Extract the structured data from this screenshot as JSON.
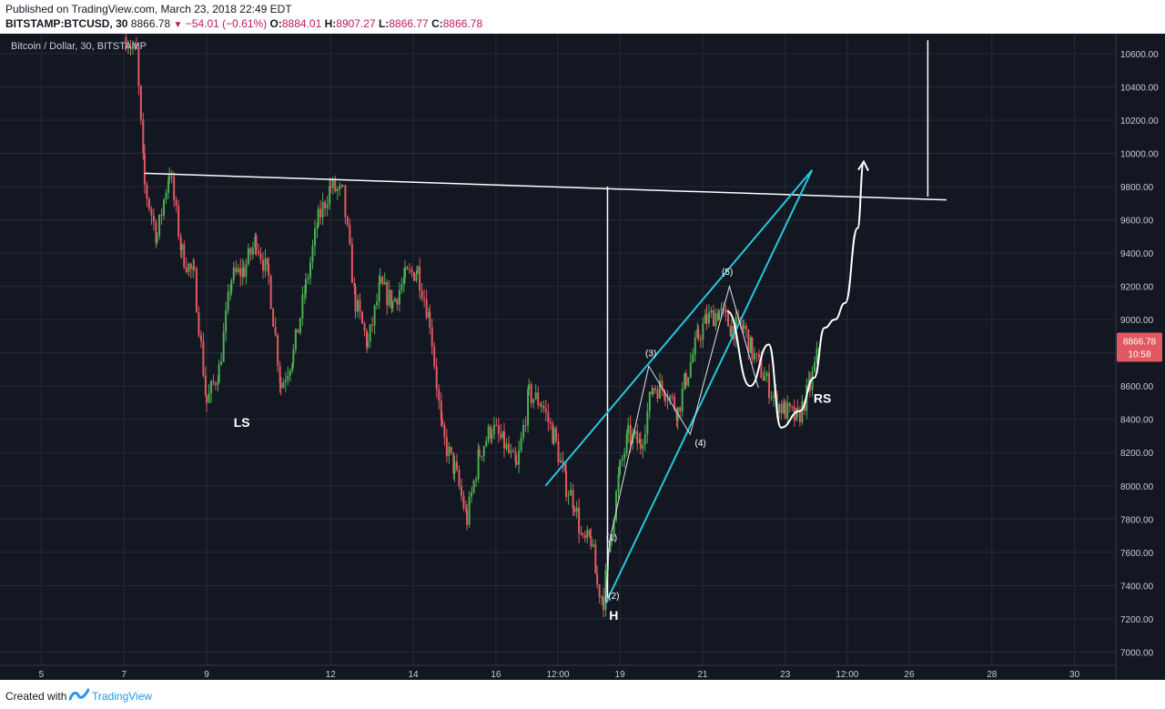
{
  "header": {
    "published": "Published on TradingView.com, March 23, 2018 22:49 EDT",
    "symbol": "BITSTAMP:BTCUSD, 30",
    "last": "8866.78",
    "change": "−54.01 (−0.61%)",
    "open_label": "O:",
    "open": "8884.01",
    "high_label": "H:",
    "high": "8907.27",
    "low_label": "L:",
    "low": "8866.77",
    "close_label": "C:",
    "close": "8866.78"
  },
  "footer": {
    "created_label": "Created with",
    "brand": "TradingView"
  },
  "colors": {
    "background": "#131722",
    "grid": "#272b36",
    "up": "#4caf50",
    "down": "#e05a62",
    "annotation_white": "#ffffff",
    "annotation_cyan": "#26c6da",
    "price_badge": "#e05a62"
  },
  "chart_data": {
    "type": "candlestick",
    "title": "Bitcoin / Dollar, 30, BITSTAMP",
    "ylim": [
      6920,
      10720
    ],
    "xlim": [
      4.0,
      31.0
    ],
    "y_ticks": [
      "10600.00",
      "10400.00",
      "10200.00",
      "10000.00",
      "9800.00",
      "9600.00",
      "9400.00",
      "9200.00",
      "9000.00",
      "8800.00",
      "8600.00",
      "8400.00",
      "8200.00",
      "8000.00",
      "7800.00",
      "7600.00",
      "7400.00",
      "7200.00",
      "7000.00"
    ],
    "x_ticks": [
      {
        "label": "5",
        "x": 5.0
      },
      {
        "label": "7",
        "x": 7.0
      },
      {
        "label": "9",
        "x": 9.0
      },
      {
        "label": "12",
        "x": 12.0
      },
      {
        "label": "14",
        "x": 14.0
      },
      {
        "label": "16",
        "x": 16.0
      },
      {
        "label": "12:00",
        "x": 17.5
      },
      {
        "label": "19",
        "x": 19.0
      },
      {
        "label": "21",
        "x": 21.0
      },
      {
        "label": "23",
        "x": 23.0
      },
      {
        "label": "12:00",
        "x": 24.5
      },
      {
        "label": "26",
        "x": 26.0
      },
      {
        "label": "28",
        "x": 28.0
      },
      {
        "label": "30",
        "x": 30.0
      }
    ],
    "price_path": [
      [
        7.05,
        10700
      ],
      [
        7.3,
        10600
      ],
      [
        7.5,
        9800
      ],
      [
        7.8,
        9500
      ],
      [
        8.1,
        9900
      ],
      [
        8.4,
        9400
      ],
      [
        8.7,
        9250
      ],
      [
        9.0,
        8500
      ],
      [
        9.3,
        8700
      ],
      [
        9.6,
        9250
      ],
      [
        9.9,
        9300
      ],
      [
        10.2,
        9480
      ],
      [
        10.5,
        9250
      ],
      [
        10.8,
        8600
      ],
      [
        11.1,
        8800
      ],
      [
        11.4,
        9200
      ],
      [
        11.7,
        9600
      ],
      [
        12.0,
        9800
      ],
      [
        12.3,
        9750
      ],
      [
        12.6,
        9100
      ],
      [
        12.9,
        8850
      ],
      [
        13.2,
        9200
      ],
      [
        13.5,
        9100
      ],
      [
        13.8,
        9250
      ],
      [
        14.1,
        9300
      ],
      [
        14.4,
        9000
      ],
      [
        14.7,
        8300
      ],
      [
        15.0,
        8100
      ],
      [
        15.3,
        7800
      ],
      [
        15.6,
        8200
      ],
      [
        15.9,
        8350
      ],
      [
        16.2,
        8250
      ],
      [
        16.5,
        8100
      ],
      [
        16.8,
        8550
      ],
      [
        17.1,
        8500
      ],
      [
        17.4,
        8300
      ],
      [
        17.7,
        8000
      ],
      [
        17.9,
        7900
      ],
      [
        18.1,
        7650
      ],
      [
        18.3,
        7680
      ],
      [
        18.45,
        7400
      ],
      [
        18.6,
        7320
      ],
      [
        18.8,
        7750
      ],
      [
        19.0,
        8100
      ],
      [
        19.2,
        8300
      ],
      [
        19.5,
        8250
      ],
      [
        19.8,
        8600
      ],
      [
        20.1,
        8580
      ],
      [
        20.4,
        8450
      ],
      [
        20.6,
        8650
      ],
      [
        20.9,
        8900
      ],
      [
        21.1,
        9000
      ],
      [
        21.4,
        9050
      ],
      [
        21.7,
        8950
      ],
      [
        22.0,
        8950
      ],
      [
        22.2,
        8800
      ],
      [
        22.5,
        8650
      ],
      [
        22.8,
        8500
      ],
      [
        23.0,
        8450
      ],
      [
        23.3,
        8400
      ],
      [
        23.6,
        8600
      ],
      [
        23.85,
        8860
      ]
    ],
    "last_price": "8866.78",
    "badge_time": "10:58",
    "annotations": {
      "labels": [
        {
          "text": "LS",
          "x": 9.85,
          "y": 8355
        },
        {
          "text": "H",
          "x": 18.85,
          "y": 7195
        },
        {
          "text": "RS",
          "x": 23.9,
          "y": 8500
        }
      ],
      "waves": [
        {
          "text": "(1)",
          "x": 18.8,
          "y": 7670
        },
        {
          "text": "(2)",
          "x": 18.85,
          "y": 7320
        },
        {
          "text": "(3)",
          "x": 19.75,
          "y": 8780
        },
        {
          "text": "(4)",
          "x": 20.95,
          "y": 8240
        },
        {
          "text": "(5)",
          "x": 21.6,
          "y": 9270
        }
      ],
      "white_lines": [
        [
          [
            7.5,
            9880
          ],
          [
            26.9,
            9720
          ]
        ],
        [
          [
            18.7,
            9800
          ],
          [
            18.7,
            7300
          ]
        ],
        [
          [
            26.45,
            10680
          ],
          [
            26.45,
            9740
          ]
        ]
      ],
      "cyan_lines": [
        [
          [
            17.2,
            8000
          ],
          [
            23.65,
            9900
          ]
        ],
        [
          [
            18.65,
            7290
          ],
          [
            23.65,
            9900
          ]
        ]
      ],
      "wave_path": [
        [
          18.65,
          7300
        ],
        [
          18.75,
          7670
        ],
        [
          19.7,
          8720
        ],
        [
          20.7,
          8310
        ],
        [
          21.65,
          9200
        ],
        [
          22.35,
          8590
        ]
      ],
      "projection_path": [
        [
          21.6,
          9050
        ],
        [
          22.15,
          8600
        ],
        [
          22.6,
          8850
        ],
        [
          22.9,
          8350
        ],
        [
          23.35,
          8450
        ],
        [
          23.7,
          8650
        ],
        [
          23.95,
          8950
        ],
        [
          24.2,
          9000
        ],
        [
          24.45,
          9100
        ],
        [
          24.75,
          9550
        ],
        [
          24.9,
          9950
        ]
      ]
    }
  }
}
